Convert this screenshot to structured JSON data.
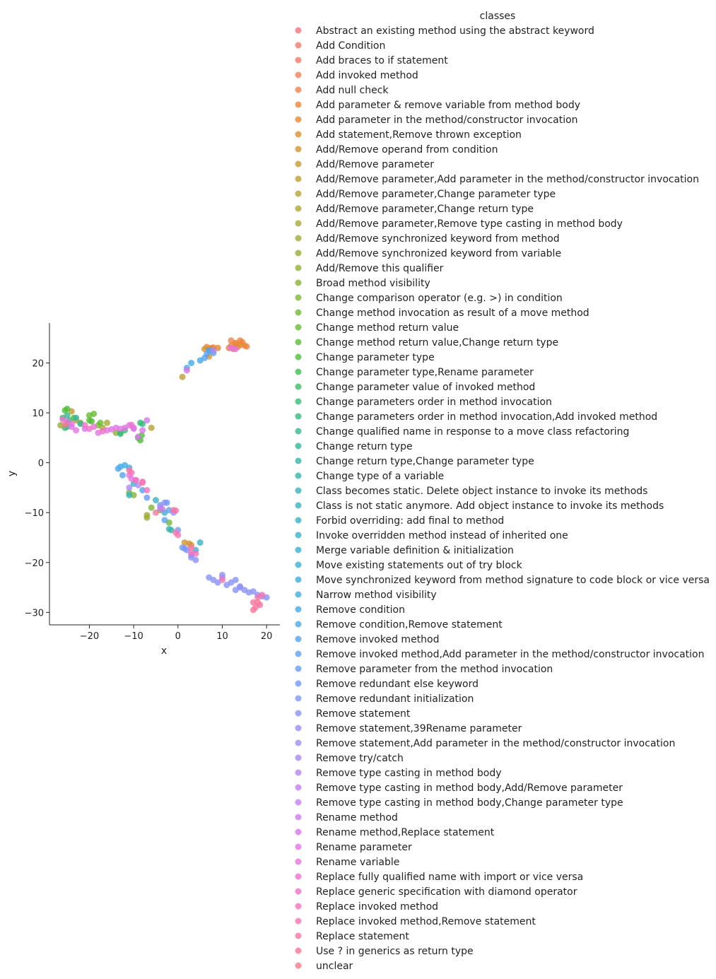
{
  "chart_data": {
    "type": "scatter",
    "xlabel": "x",
    "ylabel": "y",
    "xlim": [
      -29,
      23
    ],
    "ylim": [
      -32.5,
      28
    ],
    "xticks": [
      -20,
      -10,
      0,
      10,
      20
    ],
    "yticks": [
      -30,
      -20,
      -10,
      0,
      10,
      20
    ],
    "grid": false,
    "legend_title": "classes",
    "legend_placement": "right",
    "point_alpha": 0.8,
    "series": [
      {
        "name": "Abstract an existing method using the abstract keyword",
        "color": "#f0757d",
        "points": []
      },
      {
        "name": "Add Condition",
        "color": "#f17772",
        "points": []
      },
      {
        "name": "Add braces to if statement",
        "color": "#f27a68",
        "points": []
      },
      {
        "name": "Add invoked method",
        "color": "#f27d5a",
        "points": []
      },
      {
        "name": "Add null check",
        "color": "#f2804a",
        "points": [
          [
            12,
            24.5
          ],
          [
            13,
            24
          ],
          [
            14,
            24.5
          ],
          [
            15,
            23.5
          ],
          [
            13.5,
            23.2
          ],
          [
            12.5,
            22.8
          ],
          [
            11.5,
            23
          ]
        ]
      },
      {
        "name": "Add parameter & remove variable from method body",
        "color": "#ed8536",
        "points": [
          [
            14.5,
            24.2
          ],
          [
            15.5,
            23.3
          ],
          [
            12,
            23.5
          ],
          [
            8,
            23.1
          ],
          [
            7,
            22.8
          ]
        ]
      },
      {
        "name": "Add parameter in the method/constructor invocation",
        "color": "#e38a2f",
        "points": [
          [
            7.5,
            23
          ],
          [
            6.5,
            23.2
          ],
          [
            9,
            23
          ],
          [
            13,
            23.8
          ],
          [
            14,
            23.6
          ]
        ]
      },
      {
        "name": "Add statement,Remove thrown exception",
        "color": "#d99031",
        "points": [
          [
            6,
            22.8
          ],
          [
            7,
            21.3
          ],
          [
            3,
            -16.5
          ]
        ]
      },
      {
        "name": "Add/Remove operand from condition",
        "color": "#d09433",
        "points": [
          [
            1.5,
            -16
          ],
          [
            2.5,
            -16.2
          ]
        ]
      },
      {
        "name": "Add/Remove parameter",
        "color": "#c79a33",
        "points": [
          [
            -25,
            8
          ],
          [
            -23,
            8.5
          ]
        ]
      },
      {
        "name": "Add/Remove parameter,Add parameter in the method/constructor invocation",
        "color": "#be9e33",
        "points": [
          [
            1,
            17.2
          ],
          [
            -24,
            10.3
          ]
        ]
      },
      {
        "name": "Add/Remove parameter,Change parameter type",
        "color": "#b6a233",
        "points": [
          [
            -6,
            7
          ]
        ]
      },
      {
        "name": "Add/Remove parameter,Change return type",
        "color": "#aea633",
        "points": [
          [
            -17,
            7
          ]
        ]
      },
      {
        "name": "Add/Remove parameter,Remove type casting in method body",
        "color": "#a6a933",
        "points": [
          [
            -16,
            8
          ]
        ]
      },
      {
        "name": "Add/Remove synchronized keyword from method",
        "color": "#9fab33",
        "points": [
          [
            -7,
            -10.5
          ],
          [
            -7,
            -11
          ]
        ]
      },
      {
        "name": "Add/Remove synchronized keyword from variable",
        "color": "#97ae33",
        "points": [
          [
            -26.5,
            7.5
          ],
          [
            -14,
            6
          ]
        ]
      },
      {
        "name": "Add/Remove this qualifier",
        "color": "#8fb133",
        "points": [
          [
            -22,
            8
          ]
        ]
      },
      {
        "name": "Broad method visibility",
        "color": "#87b433",
        "points": [
          [
            -18,
            7.5
          ],
          [
            -10,
            -6.5
          ]
        ]
      },
      {
        "name": "Change comparison operator (e.g. >) in condition",
        "color": "#7db633",
        "points": [
          [
            -11,
            -6
          ],
          [
            -6,
            -9
          ]
        ]
      },
      {
        "name": "Change method invocation as result of a move method",
        "color": "#72b833",
        "points": [
          [
            -2,
            -12
          ],
          [
            -4,
            -9.5
          ]
        ]
      },
      {
        "name": "Change method return value",
        "color": "#67ba33",
        "points": [
          [
            -20,
            9.5
          ],
          [
            -19,
            9.8
          ],
          [
            -17.5,
            8
          ]
        ]
      },
      {
        "name": "Change method return value,Change return type",
        "color": "#5bbc33",
        "points": [
          [
            -23.5,
            9
          ],
          [
            -20,
            8.5
          ]
        ]
      },
      {
        "name": "Change parameter type",
        "color": "#4dbe39",
        "points": [
          [
            -25.5,
            10.5
          ],
          [
            -25,
            10.8
          ],
          [
            -19.5,
            8.3
          ],
          [
            -8.5,
            4.5
          ],
          [
            -9,
            5
          ],
          [
            -8.2,
            5.5
          ]
        ]
      },
      {
        "name": "Change parameter type,Rename parameter",
        "color": "#41bd53",
        "points": [
          [
            -26,
            9
          ]
        ]
      },
      {
        "name": "Change parameter value of invoked method",
        "color": "#3cbb66",
        "points": [
          [
            -25.5,
            7
          ],
          [
            -13,
            6
          ],
          [
            -12,
            6.5
          ]
        ]
      },
      {
        "name": "Change parameters order in method invocation",
        "color": "#39ba76",
        "points": [
          [
            -24.5,
            8.5
          ],
          [
            -13,
            5.8
          ],
          [
            -8.5,
            8
          ]
        ]
      },
      {
        "name": "Change parameters order in method invocation,Add invoked method",
        "color": "#37b983",
        "points": [
          [
            -8,
            7.8
          ]
        ]
      },
      {
        "name": "Change qualified name in response to a move class refactoring",
        "color": "#36b88f",
        "points": [
          [
            -25,
            9.5
          ]
        ]
      },
      {
        "name": "Change return type",
        "color": "#35b79a",
        "points": [
          [
            -25,
            7.2
          ],
          [
            -22,
            7.8
          ]
        ]
      },
      {
        "name": "Change return type,Change parameter type",
        "color": "#35b6a4",
        "points": [
          [
            -23,
            9
          ]
        ]
      },
      {
        "name": "Change type of a variable",
        "color": "#36b5ad",
        "points": [
          [
            -2,
            -13.3
          ],
          [
            -1.5,
            -13.5
          ]
        ]
      },
      {
        "name": "Class becomes static. Delete object instance to invoke its methods",
        "color": "#37b4b6",
        "points": [
          [
            -11,
            -6.5
          ]
        ]
      },
      {
        "name": "Class is not static anymore. Add object instance to invoke its methods",
        "color": "#38b3bd",
        "points": [
          [
            -5,
            -7.5
          ]
        ]
      },
      {
        "name": "Forbid overriding: add final to method",
        "color": "#38b2c4",
        "points": [
          [
            5,
            -16
          ]
        ]
      },
      {
        "name": "Invoke overridden method instead of inherited one",
        "color": "#39b1ca",
        "points": [
          [
            -10,
            -4.2
          ]
        ]
      },
      {
        "name": "Merge variable definition & initialization",
        "color": "#3ab0d0",
        "points": [
          [
            -3,
            -10
          ]
        ]
      },
      {
        "name": "Move existing statements out of try block",
        "color": "#3bafd6",
        "points": [
          [
            4,
            -17.5
          ]
        ]
      },
      {
        "name": "Move synchronized keyword from method signature to code block or vice versa",
        "color": "#3caddd",
        "points": [
          [
            -12,
            -0.5
          ]
        ]
      },
      {
        "name": "Narrow method visibility",
        "color": "#3eabe3",
        "points": [
          [
            -13,
            -0.8
          ],
          [
            -11,
            -1
          ]
        ]
      },
      {
        "name": "Remove condition",
        "color": "#43a9e8",
        "points": [
          [
            3,
            20
          ],
          [
            5,
            20.5
          ],
          [
            2,
            19
          ]
        ]
      },
      {
        "name": "Remove condition,Remove statement",
        "color": "#4ba6ec",
        "points": [
          [
            8,
            22
          ],
          [
            7,
            22.5
          ]
        ]
      },
      {
        "name": "Remove invoked method",
        "color": "#54a3f0",
        "points": [
          [
            6,
            21
          ],
          [
            7.5,
            22.5
          ],
          [
            6.5,
            21.8
          ],
          [
            -13.5,
            -1.2
          ],
          [
            -12.5,
            -2.5
          ],
          [
            -8,
            -5.5
          ]
        ]
      },
      {
        "name": "Remove invoked method,Add parameter in the method/constructor invocation",
        "color": "#5ea0f3",
        "points": [
          [
            -2,
            -9.5
          ],
          [
            -3,
            -11.5
          ]
        ]
      },
      {
        "name": "Remove parameter from the method invocation",
        "color": "#699df5",
        "points": [
          [
            -7,
            -7
          ],
          [
            -4,
            -8.5
          ],
          [
            -2.5,
            -8
          ]
        ]
      },
      {
        "name": "Remove redundant else keyword",
        "color": "#7499f7",
        "points": [
          [
            0,
            -13.5
          ],
          [
            1,
            -17
          ],
          [
            1.5,
            -17.2
          ]
        ]
      },
      {
        "name": "Remove redundant initialization",
        "color": "#7f96f7",
        "points": [
          [
            2,
            -17.5
          ],
          [
            3,
            -18.5
          ]
        ]
      },
      {
        "name": "Remove statement",
        "color": "#8a92f7",
        "points": [
          [
            7,
            -23
          ],
          [
            8,
            -23.5
          ],
          [
            9,
            -24
          ],
          [
            10,
            -22.5
          ],
          [
            11,
            -24.5
          ],
          [
            12,
            -24
          ],
          [
            13,
            -25.5
          ],
          [
            14,
            -25
          ],
          [
            15,
            -25.5
          ],
          [
            16,
            -26
          ],
          [
            17,
            -25.8
          ],
          [
            18,
            -26.5
          ],
          [
            19,
            -26.8
          ],
          [
            20,
            -27
          ],
          [
            13,
            -23.5
          ],
          [
            3,
            -19
          ],
          [
            4,
            -19.5
          ],
          [
            -3,
            -8
          ],
          [
            -1,
            -10
          ]
        ]
      },
      {
        "name": "Remove statement,39Rename parameter",
        "color": "#958ff7",
        "points": [
          [
            14,
            -24.8
          ]
        ]
      },
      {
        "name": "Remove statement,Add parameter in the method/constructor invocation",
        "color": "#a08cf6",
        "points": [
          [
            10,
            -23
          ]
        ]
      },
      {
        "name": "Remove try/catch",
        "color": "#aa88f5",
        "points": [
          [
            -11,
            -5
          ],
          [
            -9,
            -4.5
          ]
        ]
      },
      {
        "name": "Remove type casting in method body",
        "color": "#b485f4",
        "points": [
          [
            8,
            22.5
          ]
        ]
      },
      {
        "name": "Remove type casting in method body,Add/Remove parameter",
        "color": "#be81f2",
        "points": [
          [
            -4,
            -9
          ]
        ]
      },
      {
        "name": "Remove type casting in method body,Change parameter type",
        "color": "#c87ef0",
        "points": [
          [
            -3.5,
            -9.3
          ]
        ]
      },
      {
        "name": "Rename method",
        "color": "#d17aed",
        "points": [
          [
            -7,
            8.5
          ],
          [
            -10,
            7
          ],
          [
            -21,
            6.8
          ]
        ]
      },
      {
        "name": "Rename method,Replace statement",
        "color": "#da77ea",
        "points": [
          [
            -8,
            6.5
          ],
          [
            -9,
            5.2
          ]
        ]
      },
      {
        "name": "Rename parameter",
        "color": "#e174e4",
        "points": [
          [
            -25,
            8.2
          ],
          [
            -24,
            7.2
          ],
          [
            -23,
            6.5
          ],
          [
            -16,
            6.5
          ],
          [
            -14,
            7
          ],
          [
            -13,
            6.8
          ],
          [
            -11,
            7.5
          ],
          [
            -10,
            6.8
          ],
          [
            -12,
            7
          ],
          [
            -15,
            6.7
          ],
          [
            -18,
            6
          ],
          [
            12,
            23
          ],
          [
            13,
            22.8
          ],
          [
            2,
            18.5
          ]
        ]
      },
      {
        "name": "Rename variable",
        "color": "#e873dc",
        "points": [
          [
            -26,
            8.7
          ],
          [
            -24,
            7.8
          ],
          [
            -11,
            -2.5
          ],
          [
            -10.5,
            -3.2
          ],
          [
            -8,
            -3.8
          ],
          [
            -9.5,
            -3.5
          ]
        ]
      },
      {
        "name": "Replace fully qualified name with import or vice versa",
        "color": "#ed72d3",
        "points": [
          [
            -19,
            7.2
          ],
          [
            -10.5,
            7.6
          ]
        ]
      },
      {
        "name": "Replace generic specification with diamond operator",
        "color": "#f171c9",
        "points": [
          [
            -17,
            6.3
          ],
          [
            -20,
            6.8
          ],
          [
            -21,
            7.5
          ]
        ]
      },
      {
        "name": "Replace invoked method",
        "color": "#f472bd",
        "points": [
          [
            -10.5,
            -2
          ],
          [
            -9.5,
            -3.5
          ],
          [
            -7,
            -5.5
          ],
          [
            3,
            -18
          ],
          [
            4,
            -18.2
          ]
        ]
      },
      {
        "name": "Replace invoked method,Remove statement",
        "color": "#f674b1",
        "points": [
          [
            -0.5,
            -14
          ],
          [
            0,
            -14.5
          ],
          [
            10,
            -23.5
          ],
          [
            19,
            -26.5
          ]
        ]
      },
      {
        "name": "Replace statement",
        "color": "#f675a5",
        "points": [
          [
            -11,
            -1.5
          ],
          [
            -8,
            -4
          ],
          [
            -5,
            -10
          ],
          [
            -1,
            -9.5
          ],
          [
            -0.5,
            -9.6
          ],
          [
            3,
            -17
          ],
          [
            18,
            -27
          ],
          [
            18.5,
            -28.5
          ],
          [
            17,
            -28
          ],
          [
            17.5,
            -29
          ]
        ]
      },
      {
        "name": "Use ? in generics as return type",
        "color": "#f67798",
        "points": [
          [
            17,
            -29.5
          ],
          [
            18,
            -28
          ]
        ]
      },
      {
        "name": "unclear",
        "color": "#f4798a",
        "points": [
          [
            -25.5,
            7.6
          ]
        ]
      }
    ]
  }
}
